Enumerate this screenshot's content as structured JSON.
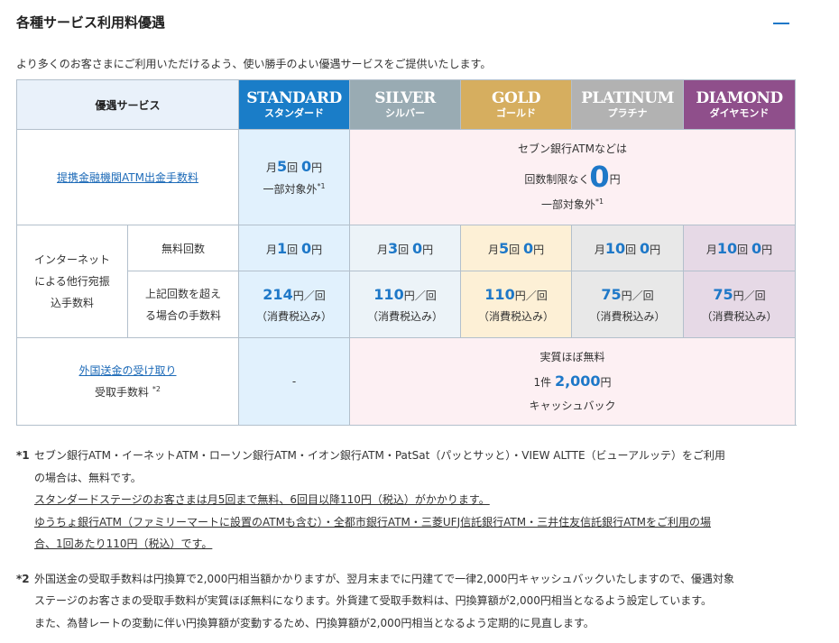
{
  "section": {
    "title": "各種サービス利用料優遇",
    "collapse_icon": "minus-icon",
    "intro": "より多くのお客さまにご利用いただけるよう、使い勝手のよい優遇サービスをご提供いたします。"
  },
  "table": {
    "header_label": "優遇サービス",
    "tiers": [
      {
        "en": "STANDARD",
        "jp": "スタンダード",
        "color": "#1a7dc8"
      },
      {
        "en": "SILVER",
        "jp": "シルバー",
        "color": "#99abb3"
      },
      {
        "en": "GOLD",
        "jp": "ゴールド",
        "color": "#d6ae5f"
      },
      {
        "en": "PLATINUM",
        "jp": "プラチナ",
        "color": "#b2b2b2"
      },
      {
        "en": "DIAMOND",
        "jp": "ダイヤモンド",
        "color": "#8f4f8b"
      }
    ],
    "atm": {
      "label": "提携金融機関ATM出金手数料",
      "standard": {
        "prefix": "月",
        "count": "5",
        "unit": "回",
        "amount": "0",
        "yen": "円",
        "note": "一部対象外",
        "sup": "*1"
      },
      "others": {
        "line1": "セブン銀行ATMなどは",
        "line2_prefix": "回数制限なく",
        "amount": "0",
        "yen": "円",
        "note": "一部対象外",
        "sup": "*1"
      }
    },
    "transfer": {
      "label_lines": [
        "インターネット",
        "による他行宛振",
        "込手数料"
      ],
      "free_label": "無料回数",
      "fee_label_lines": [
        "上記回数を超え",
        "る場合の手数料"
      ],
      "free": [
        {
          "prefix": "月",
          "count": "1",
          "unit": "回",
          "amount": "0",
          "yen": "円"
        },
        {
          "prefix": "月",
          "count": "3",
          "unit": "回",
          "amount": "0",
          "yen": "円"
        },
        {
          "prefix": "月",
          "count": "5",
          "unit": "回",
          "amount": "0",
          "yen": "円"
        },
        {
          "prefix": "月",
          "count": "10",
          "unit": "回",
          "amount": "0",
          "yen": "円"
        },
        {
          "prefix": "月",
          "count": "10",
          "unit": "回",
          "amount": "0",
          "yen": "円"
        }
      ],
      "fees": [
        {
          "amount": "214",
          "unit": "円／回",
          "tax": "（消費税込み）"
        },
        {
          "amount": "110",
          "unit": "円／回",
          "tax": "（消費税込み）"
        },
        {
          "amount": "110",
          "unit": "円／回",
          "tax": "（消費税込み）"
        },
        {
          "amount": "75",
          "unit": "円／回",
          "tax": "（消費税込み）"
        },
        {
          "amount": "75",
          "unit": "円／回",
          "tax": "（消費税込み）"
        }
      ]
    },
    "foreign": {
      "link": "外国送金の受け取り",
      "label": "受取手数料",
      "sup": "*2",
      "standard": "-",
      "others": {
        "line1": "実質ほぼ無料",
        "prefix": "1件",
        "amount": "2,000",
        "yen": "円",
        "line3": "キャッシュバック"
      }
    }
  },
  "notes": [
    {
      "mark": "*1",
      "lines": [
        {
          "text": "セブン銀行ATM・イーネットATM・ローソン銀行ATM・イオン銀行ATM・PatSat（パッとサッと）・VIEW ALTTE（ビューアルッテ）をご利用",
          "underline": false
        },
        {
          "text": "の場合は、無料です。",
          "underline": false
        },
        {
          "text": "スタンダードステージのお客さまは月5回まで無料、6回目以降110円（税込）がかかります。",
          "underline": true
        },
        {
          "text": "ゆうちょ銀行ATM（ファミリーマートに設置のATMも含む）・全都市銀行ATM・三菱UFJ信託銀行ATM・三井住友信託銀行ATMをご利用の場",
          "underline": true
        },
        {
          "text": "合、1回あたり110円（税込）です。",
          "underline": true
        }
      ]
    },
    {
      "mark": "*2",
      "lines": [
        {
          "text": "外国送金の受取手数料は円換算で2,000円相当額かかりますが、翌月末までに円建てで一律2,000円キャッシュバックいたしますので、優遇対象",
          "underline": false
        },
        {
          "text": "ステージのお客さまの受取手数料が実質ほぼ無料になります。外貨建て受取手数料は、円換算額が2,000円相当となるよう設定しています。",
          "underline": false
        },
        {
          "text": "また、為替レートの変動に伴い円換算額が変動するため、円換算額が2,000円相当となるよう定期的に見直します。",
          "underline": false
        }
      ]
    }
  ]
}
